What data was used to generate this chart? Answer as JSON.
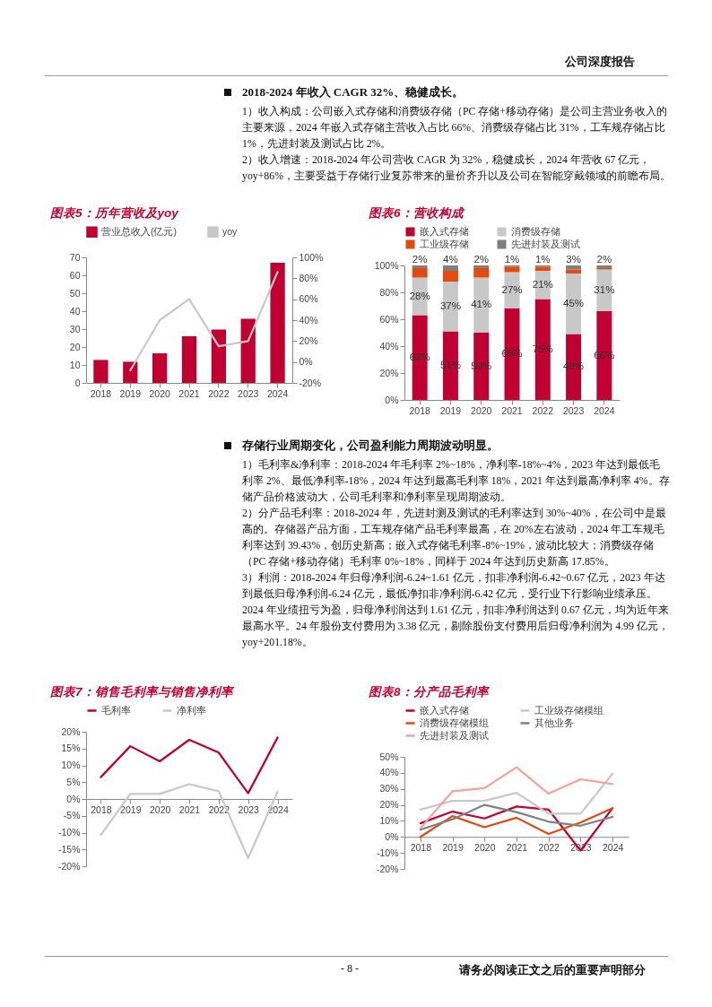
{
  "chart_data": [
    {
      "type": "other",
      "annotations": [
        "公司深度报告",
        "- 8 -",
        "请务必阅读正文之后的重要声明部分"
      ]
    },
    {
      "type": "other",
      "title": "2018-2024 年收入 CAGR 32%、稳健成长。",
      "annotations": [
        "1）收入构成：公司嵌入式存储和消费级存储（PC 存储+移动存储）是公司主营业务收入的主要来源，2024 年嵌入式存储主营收入占比 66%、消费级存储占比 31%，工车规存储占比 1%，先进封装及测试占比 2%。",
        "2）收入增速：2018-2024 年公司营收 CAGR 为 32%，稳健成长，2024 年营收 67 亿元，yoy+86%，主要受益于存储行业复苏带来的量价齐升以及公司在智能穿戴领域的前瞻布局。"
      ]
    },
    {
      "type": "bar",
      "title": "图表5：历年营收及yoy",
      "categories": [
        "2018",
        "2019",
        "2020",
        "2021",
        "2022",
        "2023",
        "2024"
      ],
      "legend": "top",
      "grid": false,
      "series": [
        {
          "name": "营业总收入(亿元)",
          "color": "#c00031",
          "values": [
            12.8,
            11.8,
            16.5,
            26,
            29.8,
            35.7,
            67
          ]
        },
        {
          "name": "yoy",
          "color": "#c8c8c8",
          "type": "line",
          "axis": "y2",
          "values": [
            null,
            -8,
            40,
            60,
            15,
            20,
            86
          ]
        }
      ],
      "ylim": [
        0,
        70
      ],
      "yticks": [
        0,
        10,
        20,
        30,
        40,
        50,
        60,
        70
      ],
      "y2lim": [
        -20,
        100
      ],
      "y2ticks": [
        {
          "value": -20,
          "label": "-20%"
        },
        {
          "value": 0,
          "label": "0%"
        },
        {
          "value": 20,
          "label": "20%"
        },
        {
          "value": 40,
          "label": "40%"
        },
        {
          "value": 60,
          "label": "60%"
        },
        {
          "value": 80,
          "label": "80%"
        },
        {
          "value": 100,
          "label": "100%"
        }
      ]
    },
    {
      "type": "bar",
      "title": "图表6：营收构成",
      "categories": [
        "2018",
        "2019",
        "2020",
        "2021",
        "2022",
        "2023",
        "2024"
      ],
      "legend": "top",
      "grid": false,
      "stacked": true,
      "series": [
        {
          "name": "嵌入式存储",
          "color": "#c00031",
          "values": [
            63,
            51,
            50,
            68,
            75,
            49,
            66
          ],
          "value_labels": [
            "63%",
            "51%",
            "50%",
            "68%",
            "75%",
            "49%",
            "66%"
          ]
        },
        {
          "name": "消费级存储",
          "color": "#c8c8c8",
          "values": [
            28,
            37,
            41,
            27,
            21,
            45,
            31
          ],
          "value_labels": [
            "28%",
            "37%",
            "41%",
            "27%",
            "21%",
            "45%",
            "31%"
          ]
        },
        {
          "name": "工业级存储",
          "color": "#e34a0f",
          "values": [
            7,
            8,
            7,
            4,
            3,
            3,
            1
          ]
        },
        {
          "name": "先进封装及测试",
          "color": "#7f7f7f",
          "values": [
            2,
            4,
            2,
            1,
            1,
            3,
            2
          ],
          "value_labels": [
            "2%",
            "4%",
            "2%",
            "1%",
            "1%",
            "3%",
            "2%"
          ]
        }
      ],
      "ylim": [
        0,
        100
      ],
      "yticks": [
        {
          "value": 0,
          "label": "0%"
        },
        {
          "value": 20,
          "label": "20%"
        },
        {
          "value": 40,
          "label": "40%"
        },
        {
          "value": 60,
          "label": "60%"
        },
        {
          "value": 80,
          "label": "80%"
        },
        {
          "value": 100,
          "label": "100%"
        }
      ]
    },
    {
      "type": "other",
      "title": "存储行业周期变化，公司盈利能力周期波动明显。",
      "annotations": [
        "1）毛利率&净利率：2018-2024 年毛利率 2%~18%，净利率-18%~4%，2023 年达到最低毛利率 2%、最低净利率-18%，2024 年达到最高毛利率 18%，2021 年达到最高净利率 4%。存储产品价格波动大，公司毛利率和净利率呈现周期波动。",
        "2）分产品毛利率：2018-2024 年，先进封测及测试的毛利率达到 30%~40%，在公司中是最高的。存储器产品方面，工车规存储产品毛利率最高，在 20%左右波动，2024 年工车规毛利率达到 39.43%，创历史新高；嵌入式存储毛利率-8%~19%，波动比较大；消费级存储（PC 存储+移动存储）毛利率 0%~18%，同样于 2024 年达到历史新高 17.85%。",
        "3）利润：2018-2024 年归母净利润-6.24~1.61 亿元，扣非净利润-6.42~0.67 亿元，2023 年达到最低归母净利润-6.24 亿元，最低净扣非净利润-6.42 亿元，受行业下行影响业绩承压。2024 年业绩扭亏为盈，归母净利润达到 1.61 亿元，扣非净利润达到 0.67 亿元，均为近年来最高水平。24 年股份支付费用为 3.38 亿元，剔除股份支付费用后归母净利润为 4.99 亿元，yoy+201.18%。"
      ]
    },
    {
      "type": "line",
      "title": "图表7：销售毛利率与销售净利率",
      "categories": [
        "2018",
        "2019",
        "2020",
        "2021",
        "2022",
        "2023",
        "2024"
      ],
      "legend": "top",
      "grid": false,
      "series": [
        {
          "name": "毛利率",
          "color": "#c00031",
          "values": [
            6.5,
            15.7,
            11.2,
            17.6,
            13.8,
            1.7,
            18.3
          ]
        },
        {
          "name": "净利率",
          "color": "#c8c8c8",
          "values": [
            -10.7,
            1.5,
            1.5,
            4.4,
            2.3,
            -17.6,
            2.2
          ]
        }
      ],
      "ylim": [
        -20,
        20
      ],
      "yticks": [
        {
          "value": -20,
          "label": "-20%"
        },
        {
          "value": -15,
          "label": "-15%"
        },
        {
          "value": -10,
          "label": "-10%"
        },
        {
          "value": -5,
          "label": "-5%"
        },
        {
          "value": 0,
          "label": "0%"
        },
        {
          "value": 5,
          "label": "5%"
        },
        {
          "value": 10,
          "label": "10%"
        },
        {
          "value": 15,
          "label": "15%"
        },
        {
          "value": 20,
          "label": "20%"
        }
      ]
    },
    {
      "type": "line",
      "title": "图表8：分产品毛利率",
      "categories": [
        "2018",
        "2019",
        "2020",
        "2021",
        "2022",
        "2023",
        "2024"
      ],
      "legend": "top",
      "grid": false,
      "series": [
        {
          "name": "嵌入式存储",
          "color": "#c00031",
          "values": [
            8.5,
            15.8,
            11.5,
            19,
            17,
            -8.5,
            18
          ]
        },
        {
          "name": "工业级存储模组",
          "color": "#c8c8c8",
          "values": [
            17,
            22.5,
            22.5,
            27.5,
            14.5,
            14.5,
            39.5
          ]
        },
        {
          "name": "消费级存储模组",
          "color": "#e04a10",
          "values": [
            0,
            13,
            6,
            12,
            1.8,
            9,
            18
          ]
        },
        {
          "name": "其他业务",
          "color": "#808080",
          "values": [
            4.5,
            11,
            20,
            15.5,
            9.5,
            7,
            12.5
          ]
        },
        {
          "name": "先进封装及测试",
          "color": "#f4a29a",
          "values": [
            5.5,
            28.5,
            30.5,
            43.5,
            27,
            36,
            33
          ]
        }
      ],
      "ylim": [
        -20,
        50
      ],
      "yticks": [
        {
          "value": -20,
          "label": "-20%"
        },
        {
          "value": -10,
          "label": "-10%"
        },
        {
          "value": 0,
          "label": "0%"
        },
        {
          "value": 10,
          "label": "10%"
        },
        {
          "value": 20,
          "label": "20%"
        },
        {
          "value": 30,
          "label": "30%"
        },
        {
          "value": 40,
          "label": "40%"
        },
        {
          "value": 50,
          "label": "50%"
        }
      ]
    }
  ]
}
